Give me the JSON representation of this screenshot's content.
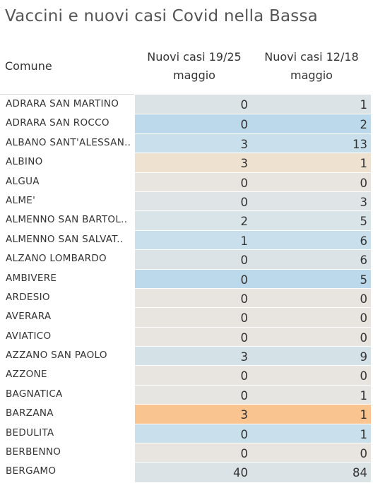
{
  "title": "Vaccini e nuovi casi Covid nella Bassa",
  "headers": {
    "comune": "Comune",
    "col1_line1": "Nuovi casi 19/25",
    "col1_line2": "maggio",
    "col2_line1": "Nuovi casi  12/18",
    "col2_line2": "maggio"
  },
  "rows": [
    {
      "comune": "ADRARA SAN MARTINO",
      "c1": "0",
      "c2": "1",
      "color": "#dce3e6"
    },
    {
      "comune": "ADRARA SAN ROCCO",
      "c1": "0",
      "c2": "2",
      "color": "#bcd8eb"
    },
    {
      "comune": "ALBANO SANT'ALESSAN..",
      "c1": "3",
      "c2": "13",
      "color": "#c9e0ec"
    },
    {
      "comune": "ALBINO",
      "c1": "3",
      "c2": "1",
      "color": "#efe1d0"
    },
    {
      "comune": "ALGUA",
      "c1": "0",
      "c2": "0",
      "color": "#e8e4df"
    },
    {
      "comune": "ALME'",
      "c1": "0",
      "c2": "3",
      "color": "#dfe4e6"
    },
    {
      "comune": "ALMENNO SAN BARTOL..",
      "c1": "2",
      "c2": "5",
      "color": "#d9e4e9"
    },
    {
      "comune": "ALMENNO SAN SALVAT..",
      "c1": "1",
      "c2": "6",
      "color": "#c9e0ec"
    },
    {
      "comune": "ALZANO LOMBARDO",
      "c1": "0",
      "c2": "6",
      "color": "#dce3e6"
    },
    {
      "comune": "AMBIVERE",
      "c1": "0",
      "c2": "5",
      "color": "#bcd8eb"
    },
    {
      "comune": "ARDESIO",
      "c1": "0",
      "c2": "0",
      "color": "#e8e4df"
    },
    {
      "comune": "AVERARA",
      "c1": "0",
      "c2": "0",
      "color": "#e8e4df"
    },
    {
      "comune": "AVIATICO",
      "c1": "0",
      "c2": "0",
      "color": "#e8e4df"
    },
    {
      "comune": "AZZANO SAN PAOLO",
      "c1": "3",
      "c2": "9",
      "color": "#d4e2e8"
    },
    {
      "comune": "AZZONE",
      "c1": "0",
      "c2": "0",
      "color": "#e8e4df"
    },
    {
      "comune": "BAGNATICA",
      "c1": "0",
      "c2": "1",
      "color": "#e6e5e2"
    },
    {
      "comune": "BARZANA",
      "c1": "3",
      "c2": "1",
      "color": "#f9c48f"
    },
    {
      "comune": "BEDULITA",
      "c1": "0",
      "c2": "1",
      "color": "#c9e0ec"
    },
    {
      "comune": "BERBENNO",
      "c1": "0",
      "c2": "0",
      "color": "#e8e4df"
    },
    {
      "comune": "BERGAMO",
      "c1": "40",
      "c2": "84",
      "color": "#dce3e6"
    }
  ]
}
